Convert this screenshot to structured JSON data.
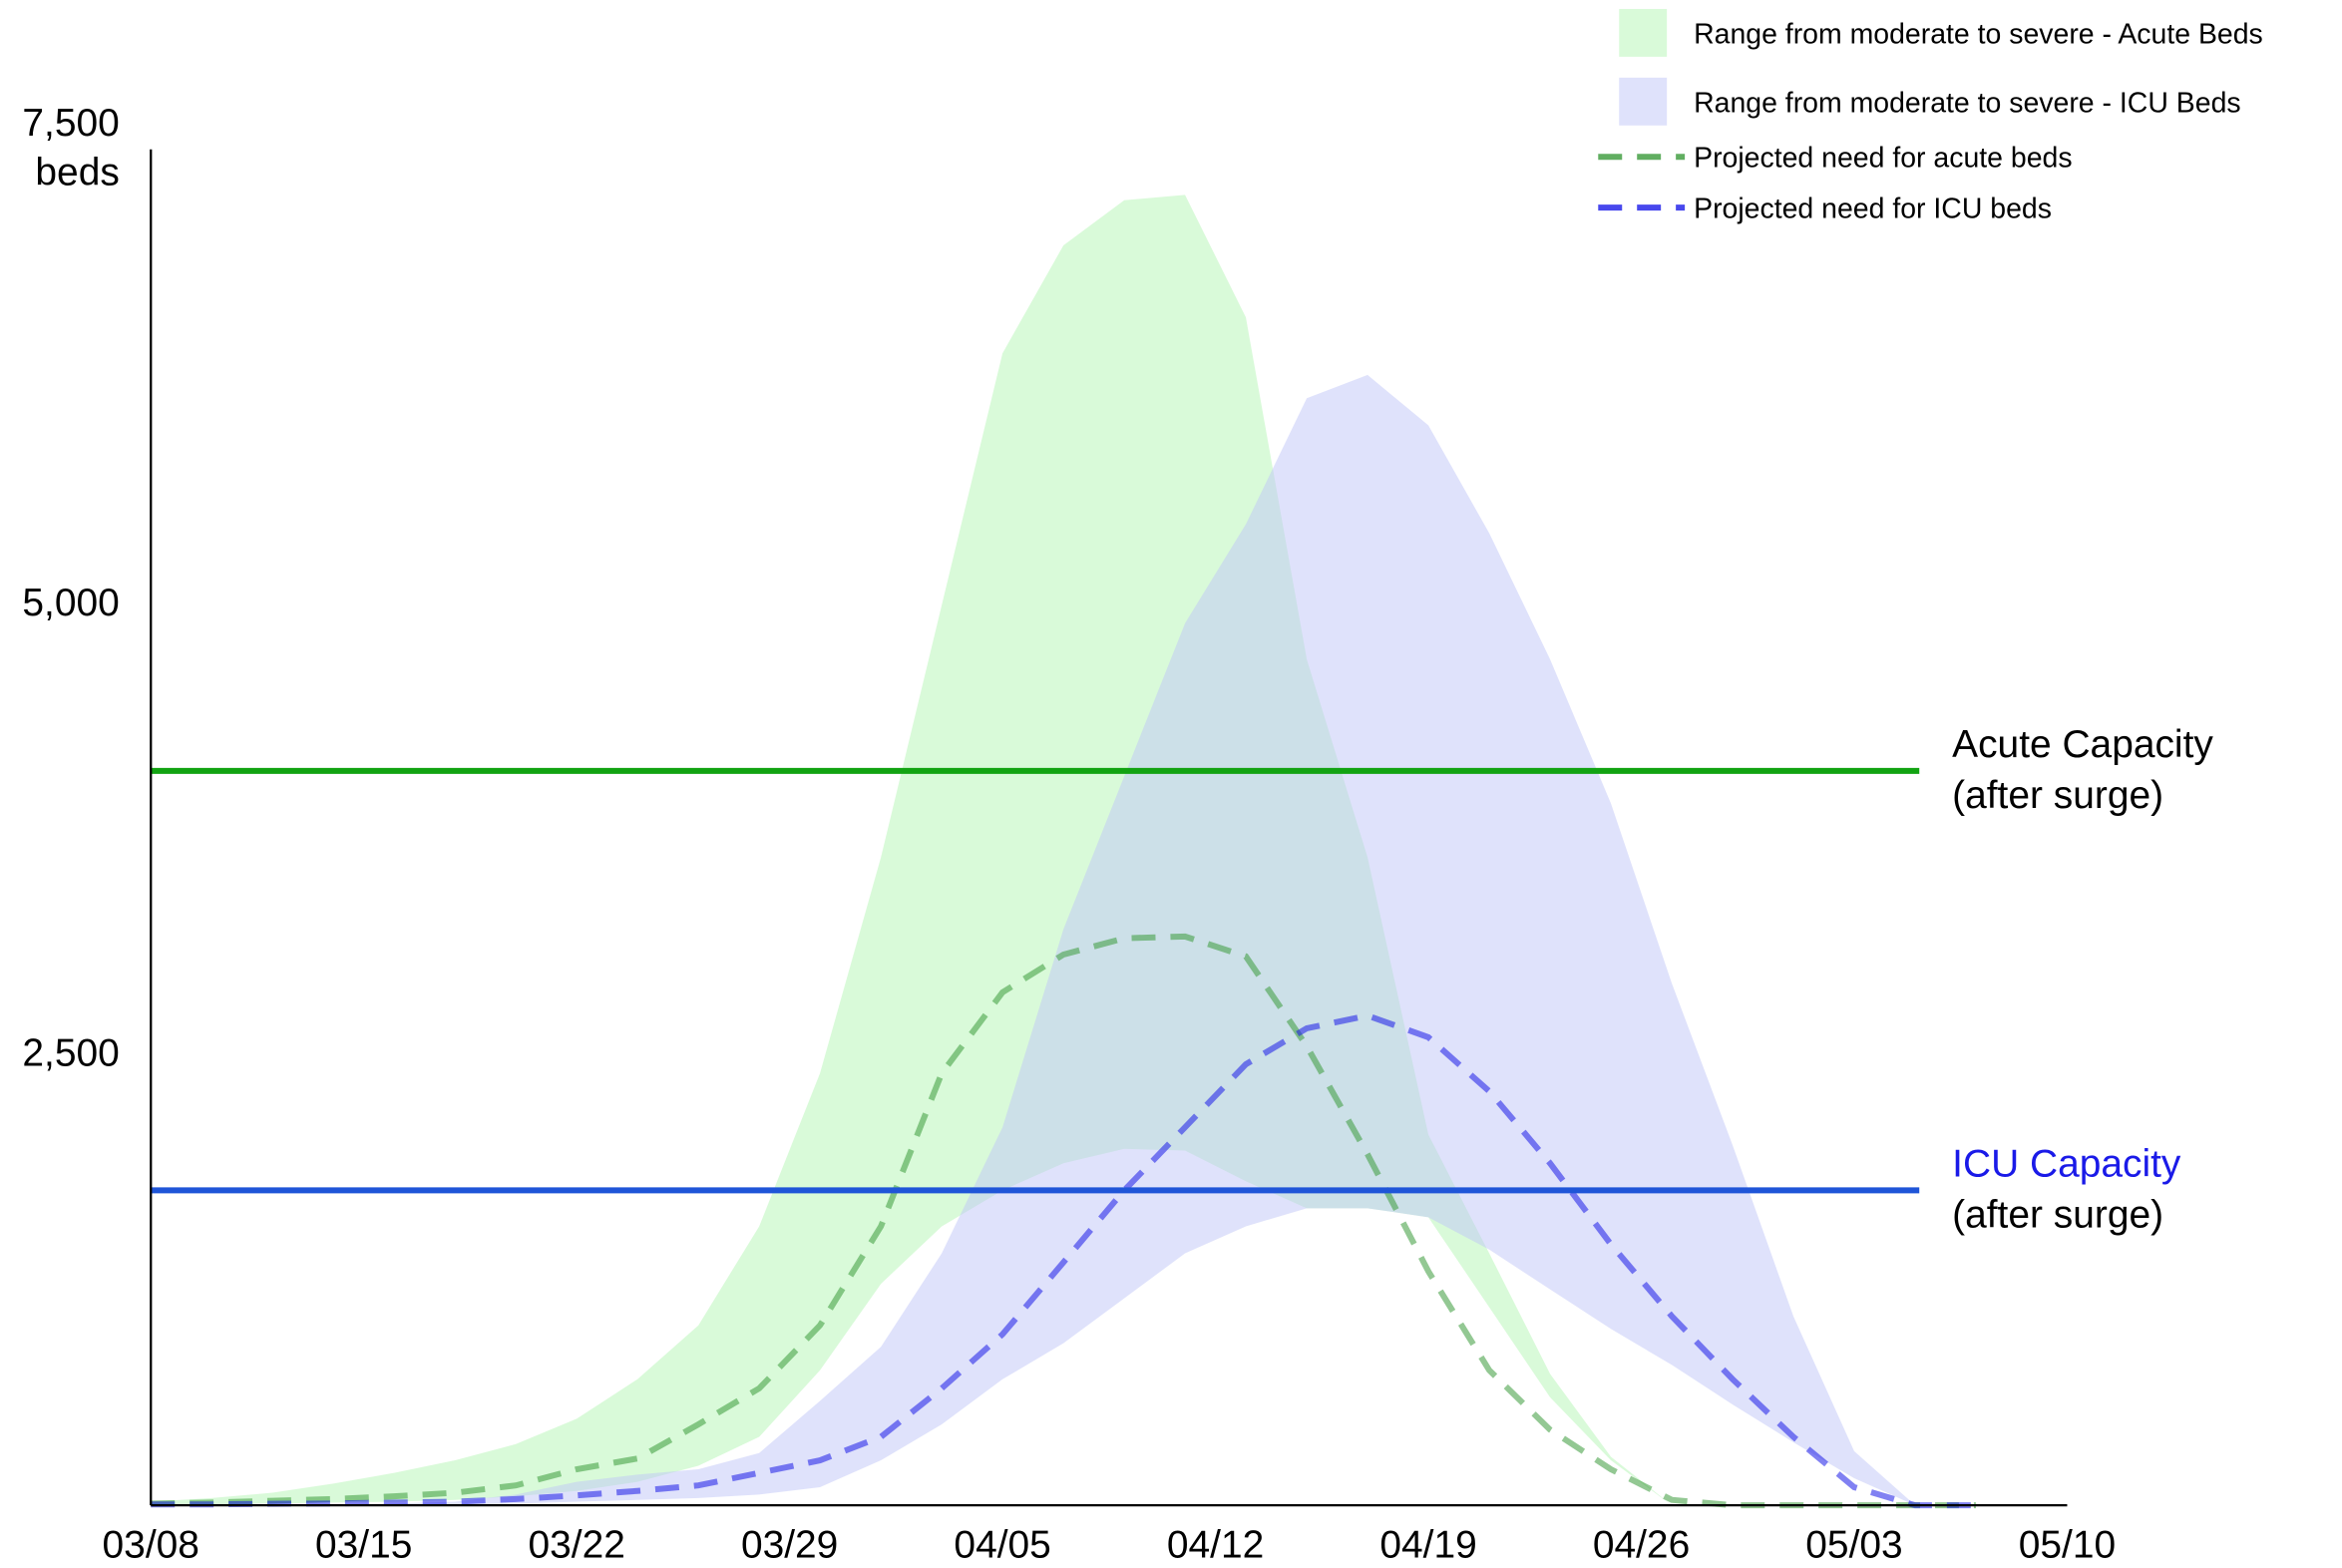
{
  "chart_data": {
    "type": "line",
    "y_axis_label": "beds",
    "x": [
      "03/08",
      "03/10",
      "03/12",
      "03/14",
      "03/16",
      "03/18",
      "03/20",
      "03/22",
      "03/24",
      "03/26",
      "03/28",
      "03/30",
      "04/01",
      "04/03",
      "04/05",
      "04/07",
      "04/09",
      "04/11",
      "04/13",
      "04/15",
      "04/17",
      "04/19",
      "04/21",
      "04/23",
      "04/25",
      "04/27",
      "04/29",
      "05/01",
      "05/03",
      "05/05",
      "05/07"
    ],
    "xlim": [
      "03/08",
      "05/10"
    ],
    "xticks": [
      "03/08",
      "03/15",
      "03/22",
      "03/29",
      "04/05",
      "04/12",
      "04/19",
      "04/26",
      "05/03",
      "05/10"
    ],
    "ylim": [
      0,
      7500
    ],
    "yticks": [
      {
        "value": 2500,
        "label": "2,500"
      },
      {
        "value": 5000,
        "label": "5,000"
      },
      {
        "value": 7500,
        "label": "7,500"
      }
    ],
    "grid": false,
    "legend": "upper right",
    "series": [
      {
        "name": "Range from moderate to severe - Acute Beds",
        "style": "band",
        "color": "#b3f5b3",
        "upper": [
          20,
          40,
          70,
          120,
          180,
          250,
          340,
          480,
          700,
          1000,
          1550,
          2400,
          3600,
          5000,
          6400,
          7000,
          7250,
          7280,
          6600,
          4700,
          3600,
          2060,
          1400,
          730,
          270,
          0,
          0,
          0,
          0,
          0,
          0
        ],
        "lower": [
          0,
          5,
          10,
          15,
          20,
          30,
          50,
          80,
          130,
          220,
          380,
          750,
          1230,
          1550,
          1750,
          1900,
          1980,
          1970,
          1800,
          1650,
          1650,
          1600,
          1100,
          600,
          250,
          0,
          0,
          0,
          0,
          0,
          0
        ]
      },
      {
        "name": "Range from moderate to severe - ICU Beds",
        "style": "band",
        "color": "#c0c6f7",
        "upper": [
          0,
          0,
          0,
          5,
          10,
          20,
          60,
          130,
          170,
          200,
          290,
          580,
          880,
          1400,
          2100,
          3200,
          4050,
          4900,
          5450,
          6150,
          6280,
          6000,
          5400,
          4700,
          3900,
          2900,
          2000,
          1050,
          300,
          0,
          0
        ],
        "lower": [
          0,
          0,
          0,
          0,
          0,
          5,
          10,
          20,
          30,
          40,
          60,
          100,
          250,
          450,
          700,
          900,
          1150,
          1400,
          1550,
          1650,
          1650,
          1600,
          1420,
          1200,
          980,
          780,
          560,
          350,
          150,
          0,
          0
        ]
      },
      {
        "name": "Projected need for acute beds",
        "style": "dashed",
        "color": "#3a9a3a",
        "values": [
          10,
          15,
          25,
          35,
          50,
          70,
          110,
          200,
          260,
          450,
          650,
          1000,
          1550,
          2400,
          2850,
          3060,
          3150,
          3160,
          3050,
          2550,
          1950,
          1300,
          750,
          420,
          200,
          30,
          0,
          0,
          0,
          0,
          0
        ]
      },
      {
        "name": "Projected need for ICU beds",
        "style": "dashed",
        "color": "#1a1ae8",
        "values": [
          5,
          5,
          8,
          10,
          15,
          20,
          35,
          55,
          80,
          110,
          180,
          250,
          380,
          650,
          950,
          1350,
          1750,
          2100,
          2450,
          2650,
          2720,
          2600,
          2300,
          1900,
          1450,
          1050,
          700,
          380,
          100,
          0,
          0
        ]
      }
    ],
    "reference_lines": [
      {
        "value": 4080,
        "color": "#12a312",
        "label": "Acute Capacity",
        "sublabel": "(after surge)",
        "label_color": "#000000"
      },
      {
        "value": 1750,
        "color": "#1f55d8",
        "label": "ICU Capacity",
        "sublabel": "(after surge)",
        "label_color": "#1a1ae8"
      }
    ]
  }
}
